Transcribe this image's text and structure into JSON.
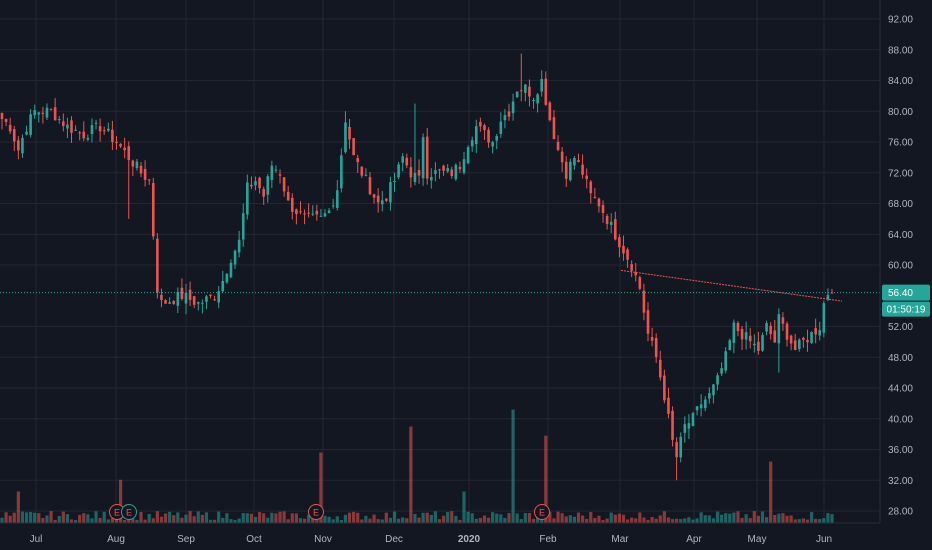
{
  "chart_data": {
    "type": "candlestick",
    "price_axis": {
      "ticks": [
        "92.00",
        "88.00",
        "84.00",
        "80.00",
        "76.00",
        "72.00",
        "68.00",
        "64.00",
        "60.00",
        "56.40",
        "52.00",
        "48.00",
        "44.00",
        "40.00",
        "36.00",
        "32.00",
        "28.00"
      ],
      "tick_values": [
        92,
        88,
        84,
        80,
        76,
        72,
        68,
        64,
        60,
        52,
        48,
        44,
        40,
        36,
        32,
        28
      ],
      "ylim": [
        26.5,
        93.5
      ]
    },
    "time_axis": {
      "labels": [
        "Jul",
        "Aug",
        "Sep",
        "Oct",
        "Nov",
        "Dec",
        "2020",
        "Feb",
        "Mar",
        "Apr",
        "May",
        "Jun"
      ]
    },
    "last_price": {
      "value": 56.4,
      "label": "56.40",
      "countdown": "01:50:19"
    },
    "earnings_markers": [
      {
        "label": "E",
        "month": "Aug",
        "color": "#ef5350"
      },
      {
        "label": "E",
        "month": "Aug",
        "color": "#26a69a"
      },
      {
        "label": "E",
        "month": "Nov",
        "color": "#ef5350"
      },
      {
        "label": "E",
        "month": "Feb",
        "color": "#ef5350"
      }
    ],
    "trendline": {
      "from": {
        "month": "Mar",
        "price": 59.3
      },
      "to": {
        "month": "Jun",
        "price": 55.3
      },
      "color": "#ef5350"
    },
    "close_path": [
      [
        0,
        79
      ],
      [
        2,
        78
      ],
      [
        4,
        75
      ],
      [
        6,
        78
      ],
      [
        8,
        80
      ],
      [
        12,
        80
      ],
      [
        16,
        78
      ],
      [
        20,
        77
      ],
      [
        24,
        78
      ],
      [
        28,
        76
      ],
      [
        31,
        74
      ],
      [
        34,
        72
      ],
      [
        36,
        71
      ],
      [
        38,
        57
      ],
      [
        39,
        55
      ],
      [
        44,
        56
      ],
      [
        48,
        55
      ],
      [
        52,
        56
      ],
      [
        54,
        58
      ],
      [
        56,
        61
      ],
      [
        58,
        63
      ],
      [
        60,
        70
      ],
      [
        62,
        71
      ],
      [
        64,
        69
      ],
      [
        66,
        73
      ],
      [
        68,
        72
      ],
      [
        70,
        68
      ],
      [
        72,
        67
      ],
      [
        74,
        66
      ],
      [
        78,
        66
      ],
      [
        80,
        67
      ],
      [
        82,
        70
      ],
      [
        84,
        79
      ],
      [
        86,
        74
      ],
      [
        88,
        72
      ],
      [
        90,
        70
      ],
      [
        92,
        68
      ],
      [
        94,
        69
      ],
      [
        96,
        71
      ],
      [
        98,
        74
      ],
      [
        100,
        72
      ],
      [
        102,
        71
      ],
      [
        103,
        77
      ],
      [
        104,
        72
      ],
      [
        106,
        72
      ],
      [
        110,
        72
      ],
      [
        112,
        73
      ],
      [
        114,
        76
      ],
      [
        116,
        78
      ],
      [
        118,
        77
      ],
      [
        120,
        76
      ],
      [
        122,
        79
      ],
      [
        124,
        80
      ],
      [
        126,
        83
      ],
      [
        128,
        83
      ],
      [
        130,
        82
      ],
      [
        132,
        84
      ],
      [
        134,
        79
      ],
      [
        136,
        75
      ],
      [
        138,
        72
      ],
      [
        140,
        74
      ],
      [
        142,
        72
      ],
      [
        144,
        69
      ],
      [
        146,
        68
      ],
      [
        148,
        66
      ],
      [
        150,
        64
      ],
      [
        152,
        62
      ],
      [
        154,
        60
      ],
      [
        156,
        57
      ],
      [
        158,
        51
      ],
      [
        160,
        48
      ],
      [
        162,
        43
      ],
      [
        164,
        37
      ],
      [
        165,
        35
      ],
      [
        167,
        39
      ],
      [
        169,
        40
      ],
      [
        171,
        42
      ],
      [
        173,
        43
      ],
      [
        175,
        45
      ],
      [
        177,
        48
      ],
      [
        179,
        52
      ],
      [
        181,
        51
      ],
      [
        183,
        50
      ],
      [
        185,
        49
      ],
      [
        187,
        52
      ],
      [
        189,
        50
      ],
      [
        190,
        53
      ],
      [
        192,
        51
      ],
      [
        194,
        49
      ],
      [
        196,
        50
      ],
      [
        198,
        51
      ],
      [
        200,
        52
      ],
      [
        201,
        55
      ],
      [
        202,
        56.4
      ]
    ],
    "spikes": [
      {
        "i": 31,
        "v": 66
      },
      {
        "i": 84,
        "v": 80
      },
      {
        "i": 101,
        "v": 81
      },
      {
        "i": 127,
        "v": 87.5
      },
      {
        "i": 162,
        "v": 42
      },
      {
        "i": 165,
        "v": 32
      },
      {
        "i": 190,
        "v": 46
      }
    ],
    "volume_spikes": [
      {
        "i": 4,
        "h": 0.25
      },
      {
        "i": 29,
        "h": 0.34
      },
      {
        "i": 78,
        "h": 0.55
      },
      {
        "i": 100,
        "h": 0.75
      },
      {
        "i": 125,
        "h": 0.88
      },
      {
        "i": 133,
        "h": 0.68
      },
      {
        "i": 113,
        "h": 0.25
      },
      {
        "i": 188,
        "h": 0.48
      }
    ],
    "colors": {
      "background": "#131722",
      "grid": "#242733",
      "up": "#26a69a",
      "down": "#ef5350",
      "axis_text": "#b2b5be",
      "last_price_line": "#26a69a"
    }
  }
}
